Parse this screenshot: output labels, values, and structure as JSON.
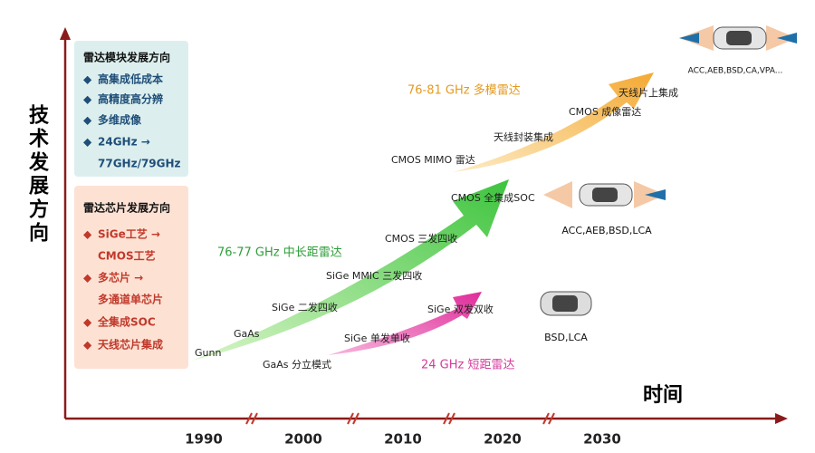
{
  "axes": {
    "y_label": "技术发展方向",
    "x_label": "时间",
    "x_ticks": [
      "1990",
      "2000",
      "2010",
      "2020",
      "2030"
    ]
  },
  "module_box": {
    "title": "雷达模块发展方向",
    "items": [
      "高集成低成本",
      "高精度高分辨",
      "多维成像",
      "24GHz →",
      "77GHz/79GHz"
    ]
  },
  "chip_box": {
    "title": "雷达芯片发展方向",
    "items": [
      "SiGe工艺 →",
      "CMOS工艺",
      "多芯片 →",
      "多通道单芯片",
      "全集成SOC",
      "天线芯片集成"
    ]
  },
  "tracks": [
    {
      "name": "24 GHz 短距雷达",
      "milestones": [
        "GaAs 分立模式",
        "SiGe 单发单收",
        "SiGe 双发双收"
      ]
    },
    {
      "name": "76-77 GHz 中长距雷达",
      "milestones": [
        "Gunn",
        "GaAs",
        "SiGe 二发四收",
        "SiGe MMIC 三发四收",
        "CMOS 三发四收",
        "CMOS 全集成SOC"
      ]
    },
    {
      "name": "76-81 GHz 多模雷达",
      "milestones": [
        "CMOS MIMO 雷达",
        "天线封装集成",
        "CMOS 成像雷达",
        "天线片上集成"
      ]
    }
  ],
  "cars": [
    "BSD,LCA",
    "ACC,AEB,BSD,LCA",
    "ACC,AEB,BSD,CA,VPA..."
  ]
}
